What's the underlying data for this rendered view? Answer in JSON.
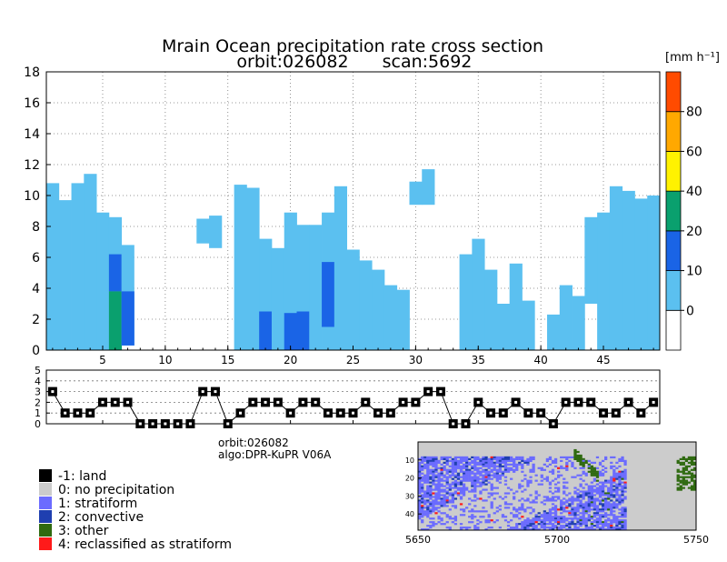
{
  "chart_data": [
    {
      "type": "heatmap",
      "title": "Mrain Ocean precipitation rate cross section",
      "subtitle_orbit": "orbit:026082",
      "subtitle_scan": "scan:5692",
      "xlabel": "",
      "ylabel": "",
      "xlim": [
        0.5,
        49.5
      ],
      "ylim": [
        0,
        18
      ],
      "x_ticks": [
        5,
        10,
        15,
        20,
        25,
        30,
        35,
        40,
        45
      ],
      "y_ticks": [
        0,
        2,
        4,
        6,
        8,
        10,
        12,
        14,
        16,
        18
      ],
      "grid": true,
      "colorbar": {
        "unit_label": "[mm h⁻¹]",
        "bins": [
          {
            "from": -10,
            "to": 0,
            "color": "#ffffff"
          },
          {
            "from": 0,
            "to": 10,
            "color": "#5bc0f0"
          },
          {
            "from": 10,
            "to": 20,
            "color": "#1a64e6"
          },
          {
            "from": 20,
            "to": 40,
            "color": "#0aa06e"
          },
          {
            "from": 40,
            "to": 60,
            "color": "#fff200"
          },
          {
            "from": 60,
            "to": 80,
            "color": "#ffa800"
          },
          {
            "from": 80,
            "to": 100,
            "color": "#ff4b00"
          }
        ],
        "tick_labels": [
          "0",
          "10",
          "20",
          "40",
          "60",
          "80"
        ],
        "tick_values": [
          0,
          10,
          20,
          40,
          60,
          80
        ]
      },
      "columns": [
        {
          "ray": 1,
          "top": 10.8,
          "cells": [
            {
              "y0": 0,
              "y1": 10.8,
              "bin": 1
            }
          ]
        },
        {
          "ray": 2,
          "top": 9.7,
          "cells": [
            {
              "y0": 0,
              "y1": 9.7,
              "bin": 1
            }
          ]
        },
        {
          "ray": 3,
          "top": 10.8,
          "cells": [
            {
              "y0": 0,
              "y1": 10.8,
              "bin": 1
            }
          ]
        },
        {
          "ray": 4,
          "top": 11.4,
          "cells": [
            {
              "y0": 0,
              "y1": 11.4,
              "bin": 1
            }
          ]
        },
        {
          "ray": 5,
          "top": 8.9,
          "cells": [
            {
              "y0": 0,
              "y1": 8.9,
              "bin": 1
            }
          ]
        },
        {
          "ray": 6,
          "top": 8.6,
          "cells": [
            {
              "y0": 0,
              "y1": 8.6,
              "bin": 1
            },
            {
              "y0": 3.8,
              "y1": 6.2,
              "bin": 2
            },
            {
              "y0": 0,
              "y1": 3.8,
              "bin": 3
            }
          ]
        },
        {
          "ray": 7,
          "top": 6.8,
          "cells": [
            {
              "y0": 0.3,
              "y1": 6.8,
              "bin": 1
            },
            {
              "y0": 0.3,
              "y1": 3.8,
              "bin": 2
            }
          ]
        },
        {
          "ray": 13,
          "top": 8.5,
          "cells": [
            {
              "y0": 6.9,
              "y1": 8.5,
              "bin": 1
            }
          ]
        },
        {
          "ray": 14,
          "top": 8.7,
          "cells": [
            {
              "y0": 6.6,
              "y1": 8.7,
              "bin": 1
            }
          ]
        },
        {
          "ray": 16,
          "top": 10.7,
          "cells": [
            {
              "y0": 0,
              "y1": 10.7,
              "bin": 1
            }
          ]
        },
        {
          "ray": 17,
          "top": 10.5,
          "cells": [
            {
              "y0": 0,
              "y1": 10.5,
              "bin": 1
            }
          ]
        },
        {
          "ray": 18,
          "top": 7.2,
          "cells": [
            {
              "y0": 0,
              "y1": 7.2,
              "bin": 1
            },
            {
              "y0": 0,
              "y1": 2.5,
              "bin": 2
            }
          ]
        },
        {
          "ray": 19,
          "top": 6.6,
          "cells": [
            {
              "y0": 0,
              "y1": 6.6,
              "bin": 1
            }
          ]
        },
        {
          "ray": 20,
          "top": 8.9,
          "cells": [
            {
              "y0": 0,
              "y1": 8.9,
              "bin": 1
            },
            {
              "y0": 0,
              "y1": 2.4,
              "bin": 2
            }
          ]
        },
        {
          "ray": 21,
          "top": 8.1,
          "cells": [
            {
              "y0": 0,
              "y1": 8.1,
              "bin": 1
            },
            {
              "y0": 0,
              "y1": 2.5,
              "bin": 2
            }
          ]
        },
        {
          "ray": 22,
          "top": 8.1,
          "cells": [
            {
              "y0": 0,
              "y1": 8.1,
              "bin": 1
            }
          ]
        },
        {
          "ray": 23,
          "top": 8.9,
          "cells": [
            {
              "y0": 0,
              "y1": 8.9,
              "bin": 1
            },
            {
              "y0": 1.5,
              "y1": 5.7,
              "bin": 2
            }
          ]
        },
        {
          "ray": 24,
          "top": 10.6,
          "cells": [
            {
              "y0": 0,
              "y1": 10.6,
              "bin": 1
            }
          ]
        },
        {
          "ray": 25,
          "top": 6.5,
          "cells": [
            {
              "y0": 0,
              "y1": 6.5,
              "bin": 1
            }
          ]
        },
        {
          "ray": 26,
          "top": 5.8,
          "cells": [
            {
              "y0": 0,
              "y1": 5.8,
              "bin": 1
            }
          ]
        },
        {
          "ray": 27,
          "top": 5.2,
          "cells": [
            {
              "y0": 0,
              "y1": 5.2,
              "bin": 1
            }
          ]
        },
        {
          "ray": 28,
          "top": 4.2,
          "cells": [
            {
              "y0": 0,
              "y1": 4.2,
              "bin": 1
            }
          ]
        },
        {
          "ray": 29,
          "top": 3.9,
          "cells": [
            {
              "y0": 0,
              "y1": 3.9,
              "bin": 1
            }
          ]
        },
        {
          "ray": 30,
          "top": 10.9,
          "cells": [
            {
              "y0": 9.4,
              "y1": 10.9,
              "bin": 1
            }
          ]
        },
        {
          "ray": 31,
          "top": 11.7,
          "cells": [
            {
              "y0": 9.4,
              "y1": 11.7,
              "bin": 1
            }
          ]
        },
        {
          "ray": 34,
          "top": 6.2,
          "cells": [
            {
              "y0": 0,
              "y1": 6.2,
              "bin": 1
            }
          ]
        },
        {
          "ray": 35,
          "top": 7.2,
          "cells": [
            {
              "y0": 0,
              "y1": 7.2,
              "bin": 1
            }
          ]
        },
        {
          "ray": 36,
          "top": 5.2,
          "cells": [
            {
              "y0": 0,
              "y1": 5.2,
              "bin": 1
            }
          ]
        },
        {
          "ray": 37,
          "top": 3.0,
          "cells": [
            {
              "y0": 0,
              "y1": 3.0,
              "bin": 1
            }
          ]
        },
        {
          "ray": 38,
          "top": 5.6,
          "cells": [
            {
              "y0": 0,
              "y1": 5.6,
              "bin": 1
            }
          ]
        },
        {
          "ray": 39,
          "top": 3.2,
          "cells": [
            {
              "y0": 0,
              "y1": 3.2,
              "bin": 1
            }
          ]
        },
        {
          "ray": 41,
          "top": 2.3,
          "cells": [
            {
              "y0": 0,
              "y1": 2.3,
              "bin": 1
            }
          ]
        },
        {
          "ray": 42,
          "top": 4.2,
          "cells": [
            {
              "y0": 0,
              "y1": 4.2,
              "bin": 1
            }
          ]
        },
        {
          "ray": 43,
          "top": 3.5,
          "cells": [
            {
              "y0": 0,
              "y1": 3.5,
              "bin": 1
            }
          ]
        },
        {
          "ray": 44,
          "top": 8.6,
          "cells": [
            {
              "y0": 3.0,
              "y1": 8.6,
              "bin": 1
            }
          ]
        },
        {
          "ray": 45,
          "top": 8.9,
          "cells": [
            {
              "y0": 0,
              "y1": 8.9,
              "bin": 1
            }
          ]
        },
        {
          "ray": 46,
          "top": 10.6,
          "cells": [
            {
              "y0": 0,
              "y1": 10.6,
              "bin": 1
            }
          ]
        },
        {
          "ray": 47,
          "top": 10.3,
          "cells": [
            {
              "y0": 0,
              "y1": 10.3,
              "bin": 1
            }
          ]
        },
        {
          "ray": 48,
          "top": 9.8,
          "cells": [
            {
              "y0": 0,
              "y1": 9.8,
              "bin": 1
            }
          ]
        },
        {
          "ray": 49,
          "top": 10.0,
          "cells": [
            {
              "y0": 0,
              "y1": 10.0,
              "bin": 1
            }
          ]
        }
      ]
    },
    {
      "type": "line",
      "title": "",
      "xlabel": "",
      "ylabel": "",
      "xlim": [
        0.5,
        49.5
      ],
      "ylim": [
        0,
        5
      ],
      "y_ticks": [
        0,
        1,
        2,
        3,
        4,
        5
      ],
      "grid": true,
      "x": [
        1,
        2,
        3,
        4,
        5,
        6,
        7,
        8,
        9,
        10,
        11,
        12,
        13,
        14,
        15,
        16,
        17,
        18,
        19,
        20,
        21,
        22,
        23,
        24,
        25,
        26,
        27,
        28,
        29,
        30,
        31,
        32,
        33,
        34,
        35,
        36,
        37,
        38,
        39,
        40,
        41,
        42,
        43,
        44,
        45,
        46,
        47,
        48,
        49
      ],
      "values": [
        3,
        1,
        1,
        1,
        2,
        2,
        2,
        0,
        0,
        0,
        0,
        0,
        3,
        3,
        0,
        1,
        2,
        2,
        2,
        1,
        2,
        2,
        1,
        1,
        1,
        2,
        1,
        1,
        2,
        2,
        3,
        3,
        0,
        0,
        2,
        1,
        1,
        2,
        1,
        1,
        0,
        2,
        2,
        2,
        1,
        1,
        2,
        1,
        2
      ]
    },
    {
      "type": "heatmap",
      "title": "",
      "xlabel": "",
      "ylabel": "",
      "xlim": [
        5650,
        5750
      ],
      "ylim": [
        0,
        49
      ],
      "x_ticks": [
        5650,
        5700,
        5750
      ],
      "y_ticks": [
        10,
        20,
        30,
        40
      ],
      "legend_labels": [
        "-1: land",
        "0: no precipitation",
        "1: stratiform",
        "2: convective",
        "3: other",
        "4: reclassified as stratiform"
      ],
      "legend_colors": [
        "#000000",
        "#cccccc",
        "#6b6bff",
        "#1f3fb0",
        "#2f6a10",
        "#ff1a1a"
      ],
      "legend_values": [
        -1,
        0,
        1,
        2,
        3,
        4
      ]
    }
  ],
  "info": {
    "orbit": "orbit:026082",
    "algo": "algo:DPR-KuPR V06A"
  }
}
